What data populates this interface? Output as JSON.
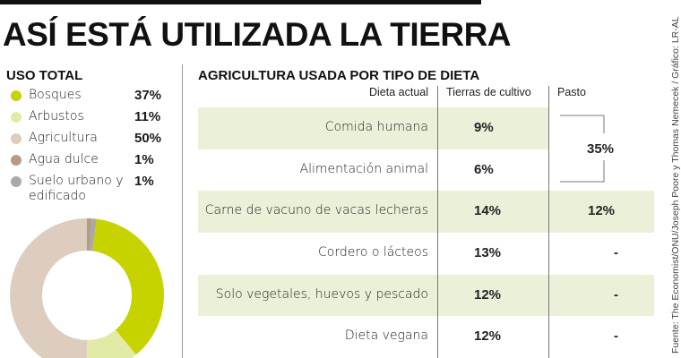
{
  "title": "ASÍ ESTÁ UTILIZADA LA TIERRA",
  "source": "Fuente: The Economist/ONU/Joseph Poore y Thomas Nemecek / Gráfico: LR-AL",
  "chart_data": [
    {
      "type": "pie",
      "style": "donut",
      "title": "USO TOTAL",
      "categories": [
        "Bosques",
        "Arbustos",
        "Agricultura",
        "Agua dulce",
        "Suelo urbano y edificado"
      ],
      "values": [
        37,
        11,
        50,
        1,
        1
      ],
      "value_labels": [
        "37%",
        "11%",
        "50%",
        "1%",
        "1%"
      ],
      "colors": [
        "#c6d300",
        "#e3eaa6",
        "#ddcdbf",
        "#b99a82",
        "#a9a9a9"
      ],
      "legend": "top"
    },
    {
      "type": "table",
      "title": "AGRICULTURA USADA POR TIPO DE DIETA",
      "columns": [
        "Dieta actual",
        "Tierras de cultivo",
        "Pasto"
      ],
      "rows": [
        {
          "diet": "Comida humana",
          "cultivo": "9%"
        },
        {
          "diet": "Alimentación animal",
          "cultivo": "6%"
        },
        {
          "diet": "Carne de vacuno de vacas lecheras",
          "cultivo": "14%",
          "pasto": "12%"
        },
        {
          "diet": "Cordero o lácteos",
          "cultivo": "13%",
          "pasto": "-"
        },
        {
          "diet": "Solo vegetales, huevos y pescado",
          "cultivo": "12%",
          "pasto": "-"
        },
        {
          "diet": "Dieta vegana",
          "cultivo": "12%",
          "pasto": "-"
        }
      ],
      "pasto_grouped_first_two": "35%",
      "row_shade_color": "#ebf1d9"
    }
  ]
}
